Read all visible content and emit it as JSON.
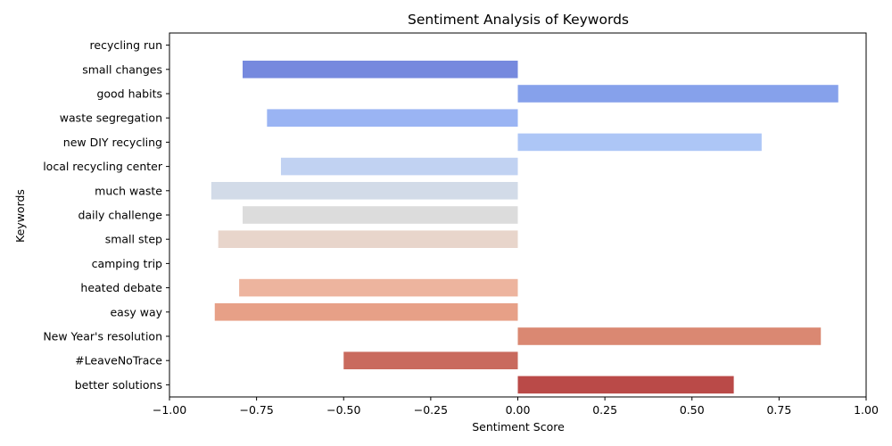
{
  "chart_data": {
    "type": "bar",
    "orientation": "horizontal",
    "title": "Sentiment Analysis of Keywords",
    "xlabel": "Sentiment Score",
    "ylabel": "Keywords",
    "xlim": [
      -1.0,
      1.0
    ],
    "xticks": [
      "−1.00",
      "−0.75",
      "−0.50",
      "−0.25",
      "0.00",
      "0.25",
      "0.50",
      "0.75",
      "1.00"
    ],
    "xtick_values": [
      -1.0,
      -0.75,
      -0.5,
      -0.25,
      0.0,
      0.25,
      0.5,
      0.75,
      1.0
    ],
    "grid": false,
    "legend": "none",
    "categories": [
      "recycling run",
      "small changes",
      "good habits",
      "waste segregation",
      "new DIY recycling",
      "local recycling center",
      "much waste",
      "daily challenge",
      "small step",
      "camping trip",
      "heated debate",
      "easy way",
      "New Year's resolution",
      "#LeaveNoTrace",
      "better solutions"
    ],
    "values": [
      0.0,
      -0.79,
      0.92,
      -0.72,
      0.7,
      -0.68,
      -0.88,
      -0.79,
      -0.86,
      0.0,
      -0.8,
      -0.87,
      0.87,
      -0.5,
      0.62
    ],
    "colors": [
      "#5b76da",
      "#7689de",
      "#86a1eb",
      "#9ab4f3",
      "#adc6f6",
      "#c1d2f2",
      "#d2dbe8",
      "#dcdcdc",
      "#e8d5cb",
      "#f1c7b2",
      "#edb49e",
      "#e7a087",
      "#da8872",
      "#c96a5e",
      "#ba4a48"
    ],
    "colormap": "coolwarm"
  }
}
